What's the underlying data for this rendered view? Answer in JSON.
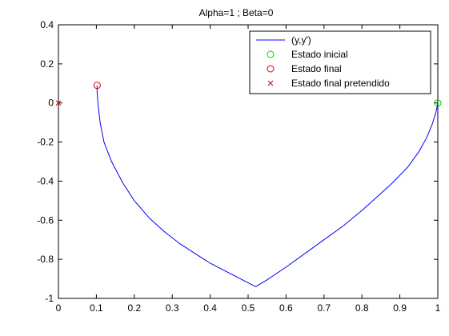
{
  "chart_data": {
    "type": "line",
    "title": "Alpha=1 ; Beta=0",
    "xlabel": "",
    "ylabel": "",
    "xlim": [
      0,
      1
    ],
    "ylim": [
      -1,
      0.4
    ],
    "xticks": [
      "0",
      "0.1",
      "0.2",
      "0.3",
      "0.4",
      "0.5",
      "0.6",
      "0.7",
      "0.8",
      "0.9",
      "1"
    ],
    "yticks": [
      "0.4",
      "0.2",
      "0",
      "-0.2",
      "-0.4",
      "-0.6",
      "-0.8",
      "-1"
    ],
    "grid": false,
    "legend_position": "top-right",
    "colors": {
      "trajectory": "#0000ff",
      "initial": "#00cc00",
      "final": "#cc0000",
      "target": "#cc0000"
    },
    "series": [
      {
        "name": "(y,y')",
        "type": "line",
        "x": [
          1.0,
          0.995,
          0.985,
          0.97,
          0.95,
          0.92,
          0.88,
          0.84,
          0.8,
          0.75,
          0.7,
          0.65,
          0.6,
          0.55,
          0.52,
          0.48,
          0.44,
          0.4,
          0.36,
          0.32,
          0.28,
          0.24,
          0.2,
          0.17,
          0.14,
          0.12,
          0.11,
          0.104,
          0.102,
          0.102
        ],
        "y": [
          0.0,
          -0.05,
          -0.11,
          -0.18,
          -0.25,
          -0.33,
          -0.41,
          -0.48,
          -0.55,
          -0.63,
          -0.7,
          -0.77,
          -0.84,
          -0.905,
          -0.94,
          -0.9,
          -0.86,
          -0.82,
          -0.77,
          -0.72,
          -0.66,
          -0.59,
          -0.5,
          -0.41,
          -0.3,
          -0.2,
          -0.1,
          0.0,
          0.06,
          0.09
        ]
      },
      {
        "name": "Estado inicial",
        "type": "marker",
        "marker": "circle",
        "x": [
          1.0
        ],
        "y": [
          0.0
        ]
      },
      {
        "name": "Estado final",
        "type": "marker",
        "marker": "circle",
        "x": [
          0.102
        ],
        "y": [
          0.09
        ]
      },
      {
        "name": "Estado final pretendido",
        "type": "marker",
        "marker": "x",
        "x": [
          0.0
        ],
        "y": [
          0.0
        ]
      }
    ]
  }
}
